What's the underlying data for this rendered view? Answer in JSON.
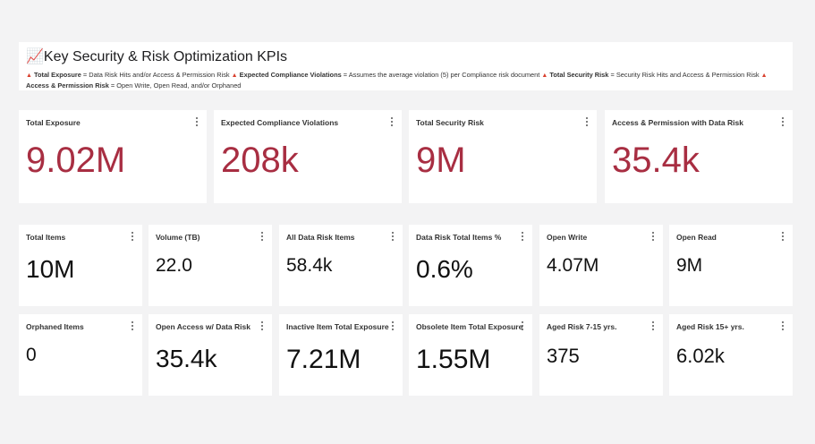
{
  "header": {
    "title": "📈Key Security & Risk Optimization KPIs",
    "notes": [
      {
        "term": "Total Exposure",
        "text": "= Data Risk Hits and/or Access & Permission Risk"
      },
      {
        "term": "Expected Compliance Violations",
        "text": "= Assumes the average violation (5) per Compliance risk document"
      },
      {
        "term": "Total Security Risk",
        "text": "= Security Risk Hits and Access & Permission Risk"
      },
      {
        "term": "Access & Permission Risk",
        "text": "= Open Write, Open Read, and/or Orphaned"
      }
    ]
  },
  "rows": [
    [
      {
        "label": "Total Exposure",
        "value": "9.02M"
      },
      {
        "label": "Expected Compliance Violations",
        "value": "208k"
      },
      {
        "label": "Total Security Risk",
        "value": "9M"
      },
      {
        "label": "Access & Permission with Data Risk",
        "value": "35.4k"
      }
    ],
    [
      {
        "label": "Total Items",
        "value": "10M"
      },
      {
        "label": "Volume (TB)",
        "value": "22.0"
      },
      {
        "label": "All Data Risk Items",
        "value": "58.4k"
      },
      {
        "label": "Data Risk Total Items %",
        "value": "0.6%"
      },
      {
        "label": "Open Write",
        "value": "4.07M"
      },
      {
        "label": "Open Read",
        "value": "9M"
      }
    ],
    [
      {
        "label": "Orphaned Items",
        "value": "0"
      },
      {
        "label": "Open Access w/ Data Risk",
        "value": "35.4k"
      },
      {
        "label": "Inactive Item Total Exposure",
        "value": "7.21M"
      },
      {
        "label": "Obsolete Item Total Exposure",
        "value": "1.55M"
      },
      {
        "label": "Aged Risk 7-15 yrs.",
        "value": "375"
      },
      {
        "label": "Aged Risk 15+ yrs.",
        "value": "6.02k"
      }
    ]
  ]
}
